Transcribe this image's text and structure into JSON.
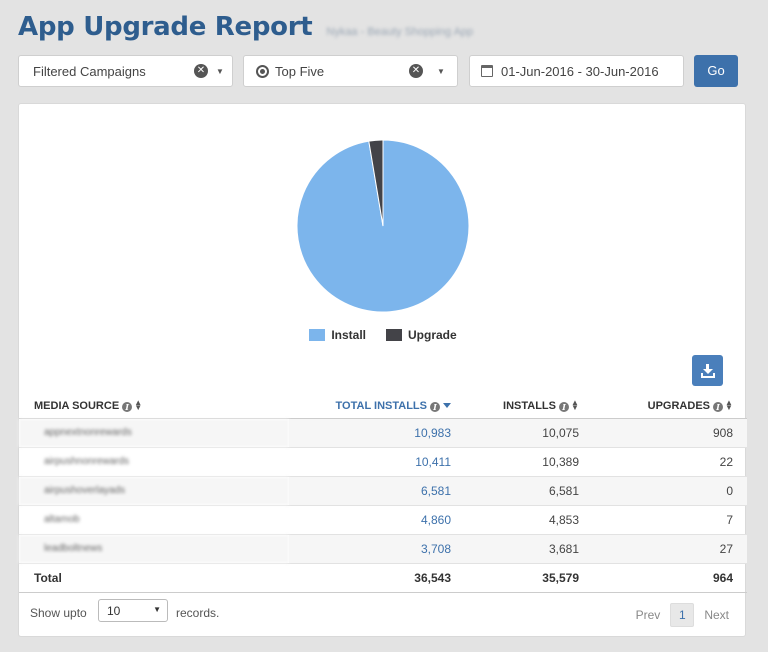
{
  "header": {
    "title": "App Upgrade Report",
    "subtitle": "Nykaa - Beauty Shopping App"
  },
  "filters": {
    "campaigns": "Filtered Campaigns",
    "top": "Top Five",
    "date_range": "01-Jun-2016 - 30-Jun-2016",
    "go_label": "Go"
  },
  "chart_data": {
    "type": "pie",
    "labels": [
      "Install",
      "Upgrade"
    ],
    "values": [
      35579,
      964
    ],
    "colors": [
      "#7cb5ec",
      "#434348"
    ],
    "legend": "bottom-center"
  },
  "legend": [
    {
      "label": "Install",
      "color": "#7cb5ec"
    },
    {
      "label": "Upgrade",
      "color": "#434348"
    }
  ],
  "table": {
    "headers": [
      "MEDIA SOURCE",
      "TOTAL INSTALLS",
      "INSTALLS",
      "UPGRADES"
    ],
    "rows": [
      {
        "source": "appnextnonrewards",
        "total": "10,983",
        "installs": "10,075",
        "upgrades": "908"
      },
      {
        "source": "airpushnonrewards",
        "total": "10,411",
        "installs": "10,389",
        "upgrades": "22"
      },
      {
        "source": "airpushoverlayads",
        "total": "6,581",
        "installs": "6,581",
        "upgrades": "0"
      },
      {
        "source": "altamob",
        "total": "4,860",
        "installs": "4,853",
        "upgrades": "7"
      },
      {
        "source": "leadboltnews",
        "total": "3,708",
        "installs": "3,681",
        "upgrades": "27"
      }
    ],
    "total": {
      "label": "Total",
      "total": "36,543",
      "installs": "35,579",
      "upgrades": "964"
    }
  },
  "footer": {
    "show_label": "Show upto",
    "records_value": "10",
    "records_label": "records.",
    "prev": "Prev",
    "page": "1",
    "next": "Next"
  }
}
